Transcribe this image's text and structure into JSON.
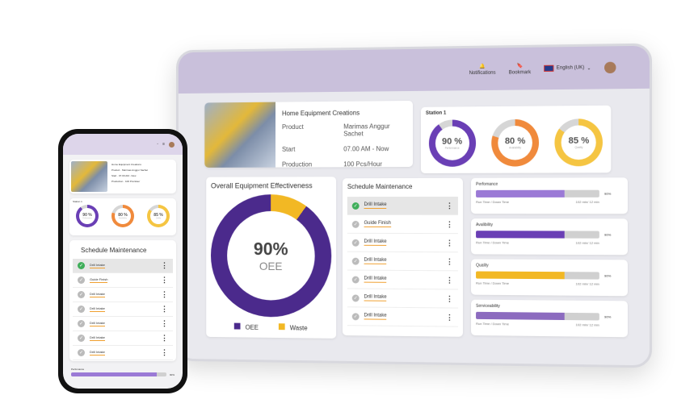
{
  "header": {
    "notifications": "Notifications",
    "bookmark": "Bookmark",
    "language": "English (UK)"
  },
  "production": {
    "title": "Home Equipment Creations",
    "rows": [
      {
        "label": "Product",
        "value": "Marimas Anggur Sachet"
      },
      {
        "label": "Start",
        "value": "07.00 AM - Now"
      },
      {
        "label": "Production",
        "value": "100 Pcs/Hour"
      }
    ]
  },
  "station": {
    "title": "Station 1",
    "gauges": [
      {
        "value": "90 %",
        "label": "Performance",
        "pct": 90,
        "color": "#6a3fb5"
      },
      {
        "value": "80 %",
        "label": "Availability",
        "pct": 80,
        "color": "#f08a3c"
      },
      {
        "value": "85 %",
        "label": "Quality",
        "pct": 85,
        "color": "#f5c542"
      }
    ]
  },
  "oee": {
    "title": "Overall Equipment Effectiveness",
    "value": "90%",
    "label": "OEE",
    "pct": 90,
    "legend": [
      "OEE",
      "Waste"
    ],
    "colors": [
      "#4b2a8c",
      "#f2b824"
    ]
  },
  "schedule": {
    "title": "Schedule Maintenance",
    "items": [
      "Drill Intake",
      "Guide Finish",
      "Drill Intake",
      "Drill Intake",
      "Drill Intake",
      "Drill Intake",
      "Drill Intake"
    ]
  },
  "metrics": [
    {
      "title": "Perfomance",
      "pct": 90,
      "value": "90%",
      "left": "Run Time / Down Time",
      "right": "102 min/ 12 min",
      "color": "#9b7ad6"
    },
    {
      "title": "Avalibility",
      "pct": 90,
      "value": "90%",
      "left": "Run Time / Down Time",
      "right": "102 min/ 12 min",
      "color": "#6a3fb5"
    },
    {
      "title": "Quality",
      "pct": 90,
      "value": "90%",
      "left": "Run Time / Down Time",
      "right": "102 min/ 12 min",
      "color": "#f2b824"
    },
    {
      "title": "Serviceability",
      "pct": 90,
      "value": "90%",
      "left": "Run Time / Down Time",
      "right": "102 min/ 12 min",
      "color": "#8c6bbf"
    }
  ]
}
